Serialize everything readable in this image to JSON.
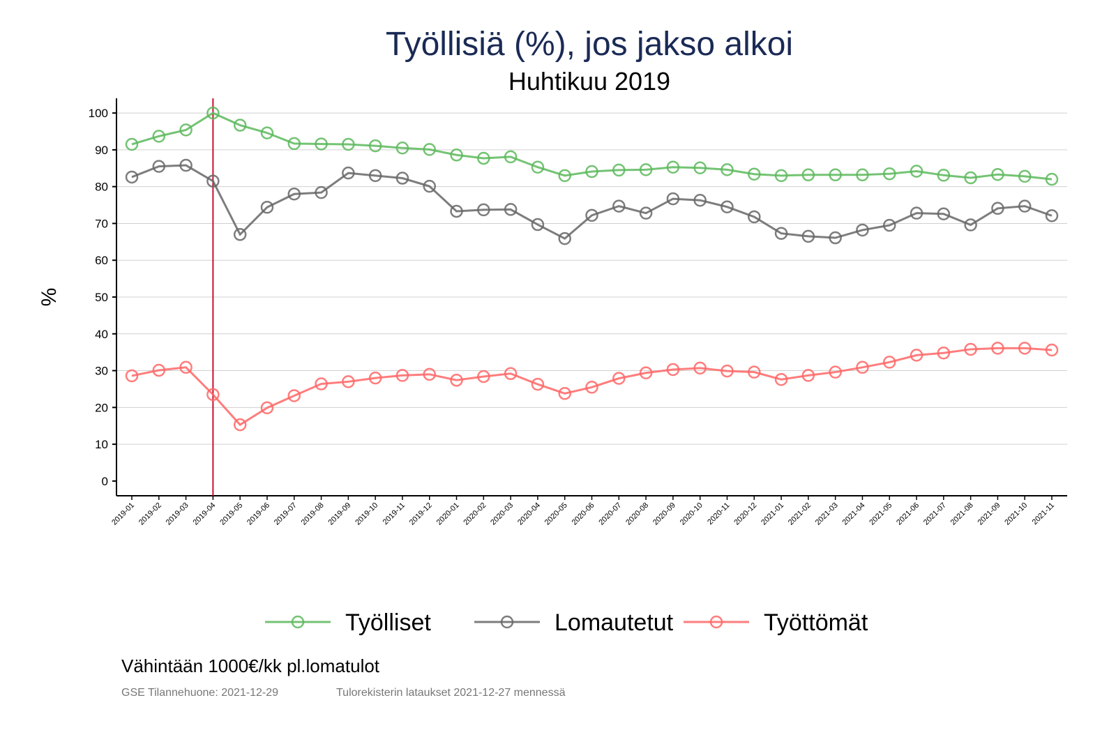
{
  "chart_data": {
    "type": "line",
    "title": "Työllisiä (%), jos jakso alkoi",
    "subtitle": "Huhtikuu 2019",
    "xlabel": "",
    "ylabel": "%",
    "ylim": [
      -4,
      104
    ],
    "yticks": [
      0,
      10,
      20,
      30,
      40,
      50,
      60,
      70,
      80,
      90,
      100
    ],
    "grid": true,
    "legend": "bottom",
    "reference_line": "2019-04",
    "reference_color": "#c8102e",
    "categories": [
      "2019-01",
      "2019-02",
      "2019-03",
      "2019-04",
      "2019-05",
      "2019-06",
      "2019-07",
      "2019-08",
      "2019-09",
      "2019-10",
      "2019-11",
      "2019-12",
      "2020-01",
      "2020-02",
      "2020-03",
      "2020-04",
      "2020-05",
      "2020-06",
      "2020-07",
      "2020-08",
      "2020-09",
      "2020-10",
      "2020-11",
      "2020-12",
      "2021-01",
      "2021-02",
      "2021-03",
      "2021-04",
      "2021-05",
      "2021-06",
      "2021-07",
      "2021-08",
      "2021-09",
      "2021-10",
      "2021-11"
    ],
    "series": [
      {
        "name": "Työlliset",
        "color": "#5cb85c",
        "values": [
          91.5,
          93.7,
          95.4,
          100,
          96.7,
          94.6,
          91.7,
          91.6,
          91.5,
          91.1,
          90.5,
          90.1,
          88.6,
          87.7,
          88.1,
          85.3,
          83.0,
          84.1,
          84.5,
          84.6,
          85.3,
          85.1,
          84.6,
          83.4,
          83.0,
          83.2,
          83.2,
          83.2,
          83.5,
          84.2,
          83.1,
          82.4,
          83.3,
          82.8,
          82.0
        ]
      },
      {
        "name": "Lomautetut",
        "color": "#666666",
        "values": [
          82.6,
          85.5,
          85.8,
          81.5,
          67.0,
          74.4,
          78.0,
          78.4,
          83.7,
          83.0,
          82.3,
          80.1,
          73.3,
          73.7,
          73.8,
          69.7,
          65.9,
          72.2,
          74.7,
          72.8,
          76.7,
          76.3,
          74.5,
          71.8,
          67.3,
          66.5,
          66.1,
          68.2,
          69.5,
          72.8,
          72.6,
          69.6,
          74.1,
          74.7,
          72.1
        ]
      },
      {
        "name": "Työttömät",
        "color": "#ff6666",
        "values": [
          28.6,
          30.1,
          30.9,
          23.5,
          15.3,
          19.9,
          23.2,
          26.4,
          27.0,
          28.0,
          28.7,
          29.0,
          27.4,
          28.4,
          29.2,
          26.3,
          23.8,
          25.5,
          27.9,
          29.4,
          30.3,
          30.7,
          29.9,
          29.6,
          27.6,
          28.7,
          29.6,
          30.9,
          32.3,
          34.2,
          34.8,
          35.8,
          36.1,
          36.1,
          35.6
        ]
      }
    ]
  },
  "footer": {
    "note": "Vähintään 1000€/kk pl.lomatulot",
    "source": "GSE Tilannehuone: 2021-12-29",
    "data_note": "Tulorekisterin lataukset 2021-12-27 mennessä"
  }
}
